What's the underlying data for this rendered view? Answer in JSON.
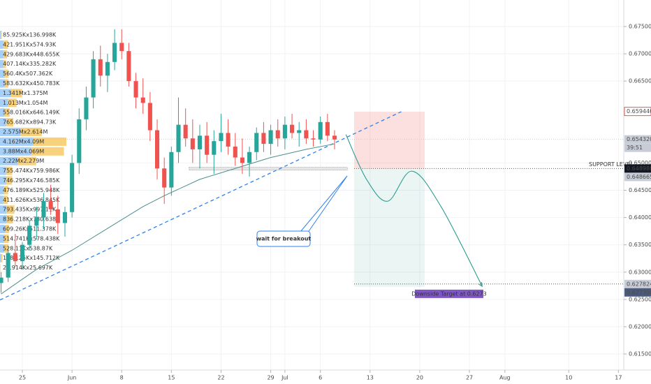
{
  "chart_data": {
    "type": "candlestick",
    "xlim": [
      -3.15,
      84.75
    ],
    "ylim": [
      0.61206,
      0.67986
    ],
    "grid": true,
    "xticks": [
      {
        "value": 0,
        "label": "25"
      },
      {
        "value": 7,
        "label": "Jun"
      },
      {
        "value": 14,
        "label": "8"
      },
      {
        "value": 21,
        "label": "15"
      },
      {
        "value": 28,
        "label": "22"
      },
      {
        "value": 35,
        "label": "29"
      },
      {
        "value": 37,
        "label": "Jul"
      },
      {
        "value": 42,
        "label": "6"
      },
      {
        "value": 49,
        "label": "13"
      },
      {
        "value": 56,
        "label": "20"
      },
      {
        "value": 63,
        "label": "27"
      },
      {
        "value": 68,
        "label": "Aug"
      },
      {
        "value": 77,
        "label": "10"
      },
      {
        "value": 84,
        "label": "17"
      }
    ],
    "yticks": [
      {
        "value": 0.675,
        "label": "0.675000"
      },
      {
        "value": 0.67,
        "label": "0.670000"
      },
      {
        "value": 0.665,
        "label": "0.665000"
      },
      {
        "value": 0.65,
        "label": "0.650000"
      },
      {
        "value": 0.645,
        "label": "0.645000"
      },
      {
        "value": 0.64,
        "label": "0.640000"
      },
      {
        "value": 0.635,
        "label": "0.635000"
      },
      {
        "value": 0.63,
        "label": "0.630000"
      },
      {
        "value": 0.625,
        "label": "0.625000"
      },
      {
        "value": 0.62,
        "label": "0.620000"
      },
      {
        "value": 0.615,
        "label": "0.615000"
      }
    ],
    "up_color": "#26a69a",
    "down_color": "#ef5350",
    "candles": {
      "x": [
        -3,
        -2,
        -1,
        0,
        1,
        2,
        3,
        4,
        5,
        6,
        7,
        8,
        9,
        10,
        11,
        12,
        13,
        14,
        15,
        16,
        17,
        18,
        19,
        20,
        21,
        22,
        23,
        24,
        25,
        26,
        27,
        28,
        29,
        30,
        31,
        32,
        33,
        34,
        35,
        36,
        37,
        38,
        39,
        40,
        41,
        42,
        43,
        44
      ],
      "open": [
        0.628,
        0.629,
        0.6335,
        0.632,
        0.635,
        0.6385,
        0.64,
        0.643,
        0.6415,
        0.639,
        0.641,
        0.65,
        0.658,
        0.662,
        0.669,
        0.666,
        0.6685,
        0.672,
        0.6705,
        0.665,
        0.662,
        0.661,
        0.656,
        0.649,
        0.6455,
        0.652,
        0.657,
        0.6545,
        0.6525,
        0.655,
        0.6515,
        0.654,
        0.6555,
        0.653,
        0.651,
        0.65,
        0.652,
        0.6555,
        0.6535,
        0.656,
        0.6545,
        0.657,
        0.6555,
        0.656,
        0.6545,
        0.6543,
        0.6575,
        0.655
      ],
      "high": [
        0.63,
        0.6345,
        0.637,
        0.6355,
        0.6395,
        0.642,
        0.6445,
        0.646,
        0.644,
        0.642,
        0.6515,
        0.66,
        0.664,
        0.6705,
        0.6715,
        0.67,
        0.6745,
        0.6745,
        0.672,
        0.6665,
        0.6655,
        0.663,
        0.658,
        0.651,
        0.653,
        0.662,
        0.66,
        0.658,
        0.657,
        0.6575,
        0.656,
        0.659,
        0.658,
        0.6555,
        0.6545,
        0.653,
        0.6565,
        0.6575,
        0.657,
        0.658,
        0.6585,
        0.659,
        0.6575,
        0.658,
        0.656,
        0.6585,
        0.659,
        0.656
      ],
      "low": [
        0.6262,
        0.6282,
        0.631,
        0.6305,
        0.634,
        0.636,
        0.638,
        0.6405,
        0.637,
        0.6365,
        0.64,
        0.648,
        0.656,
        0.66,
        0.664,
        0.663,
        0.667,
        0.669,
        0.664,
        0.66,
        0.659,
        0.654,
        0.647,
        0.6425,
        0.644,
        0.65,
        0.653,
        0.65,
        0.649,
        0.65,
        0.648,
        0.652,
        0.6515,
        0.6495,
        0.648,
        0.6475,
        0.6505,
        0.652,
        0.6515,
        0.653,
        0.6525,
        0.6545,
        0.653,
        0.6535,
        0.653,
        0.6535,
        0.654,
        0.6525
      ],
      "close": [
        0.629,
        0.6335,
        0.632,
        0.635,
        0.6385,
        0.64,
        0.643,
        0.6415,
        0.639,
        0.641,
        0.65,
        0.658,
        0.662,
        0.669,
        0.666,
        0.6685,
        0.672,
        0.6705,
        0.665,
        0.662,
        0.661,
        0.656,
        0.649,
        0.6455,
        0.652,
        0.657,
        0.6545,
        0.6525,
        0.655,
        0.6515,
        0.654,
        0.6555,
        0.653,
        0.651,
        0.65,
        0.652,
        0.6555,
        0.6535,
        0.656,
        0.6545,
        0.657,
        0.6555,
        0.656,
        0.6545,
        0.6543,
        0.6575,
        0.655,
        0.6543
      ]
    },
    "moving_average": {
      "color": "#4a8f8c",
      "x": [
        -3,
        2,
        7,
        12,
        17,
        20,
        25,
        30,
        35,
        40,
        44
      ],
      "values": [
        0.626,
        0.6305,
        0.634,
        0.638,
        0.642,
        0.644,
        0.647,
        0.649,
        0.651,
        0.6525,
        0.6535
      ]
    },
    "trendline": {
      "color": "#2f80ed",
      "x": [
        -3.15,
        53.4
      ],
      "y": [
        0.6249,
        0.6594
      ]
    },
    "risk_box": {
      "x": [
        46.75,
        56.7
      ],
      "top": 0.6594,
      "entry": 0.64898,
      "target": 0.6273
    },
    "support_band": {
      "x": [
        23.5,
        45.8
      ],
      "y": [
        0.6487,
        0.6492
      ]
    },
    "projection": {
      "color": "#2a9d8f",
      "x": [
        45.6,
        48.5,
        51.5,
        54.9,
        59,
        64.8
      ],
      "y": [
        0.6552,
        0.647,
        0.643,
        0.6485,
        0.642,
        0.6274
      ]
    },
    "support_label": "SUPPORT LEVEL",
    "breakout_note": "wait for breakout",
    "target_label": "Downside Target at 0.6273",
    "countdown": "39:51",
    "price_labels": [
      {
        "value": 0.65944,
        "label": "0.659440",
        "color": "#ef5350",
        "style": "outline"
      },
      {
        "value": 0.65432,
        "label": "0.654320",
        "color": "#c8ccd6",
        "style": "current"
      },
      {
        "value": 0.64898,
        "label": "0.648980",
        "color": "#131722",
        "style": "dotted"
      },
      {
        "value": 0.648665,
        "label": "0.648665",
        "color": "#c8ccd6",
        "style": "plain"
      },
      {
        "value": 0.627824,
        "label": "0.627824",
        "color": "#c8ccd6",
        "style": "dotted"
      },
      {
        "value": 0.6273,
        "label": "0.627300",
        "color": "#4b5b7d",
        "style": "plain"
      }
    ],
    "volume_profile": {
      "up_color": "#90c4f5",
      "down_color": "#f6c65b",
      "rows": [
        {
          "label": "85.925Kx136.998K",
          "up": 85925,
          "down": 136998
        },
        {
          "label": "421.951Kx574.93K",
          "up": 421951,
          "down": 574930
        },
        {
          "label": "429.683Kx448.655K",
          "up": 429683,
          "down": 448655
        },
        {
          "label": "407.14Kx335.282K",
          "up": 407140,
          "down": 335282
        },
        {
          "label": "560.4Kx507.362K",
          "up": 560400,
          "down": 507362
        },
        {
          "label": "583.632Kx450.783K",
          "up": 583632,
          "down": 450783
        },
        {
          "label": "1.341Mx1.375M",
          "up": 1341000,
          "down": 1375000
        },
        {
          "label": "1.013Mx1.054M",
          "up": 1013000,
          "down": 1054000
        },
        {
          "label": "558.016Kx646.149K",
          "up": 558016,
          "down": 646149
        },
        {
          "label": "765.682Kx894.73K",
          "up": 765682,
          "down": 894730
        },
        {
          "label": "2.575Mx2.614M",
          "up": 2575000,
          "down": 2614000
        },
        {
          "label": "4.162Mx4.09M",
          "up": 4162000,
          "down": 4090000
        },
        {
          "label": "3.88Mx4.069M",
          "up": 3880000,
          "down": 4069000
        },
        {
          "label": "2.22Mx2.279M",
          "up": 2220000,
          "down": 2279000
        },
        {
          "label": "755.474Kx759.986K",
          "up": 755474,
          "down": 759986
        },
        {
          "label": "746.295Kx746.585K",
          "up": 746295,
          "down": 746585
        },
        {
          "label": "476.189Kx525.948K",
          "up": 476189,
          "down": 525948
        },
        {
          "label": "411.626Kx536.845K",
          "up": 411626,
          "down": 536845
        },
        {
          "label": "793.435Kx997.11K",
          "up": 793435,
          "down": 997110
        },
        {
          "label": "836.218Kx780.638K",
          "up": 836218,
          "down": 780638
        },
        {
          "label": "609.26Kx511.378K",
          "up": 609260,
          "down": 511378
        },
        {
          "label": "514.741Kx578.438K",
          "up": 514741,
          "down": 578438
        },
        {
          "label": "528.11Kx538.87K",
          "up": 528110,
          "down": 538870
        },
        {
          "label": "158.125Kx145.712K",
          "up": 158125,
          "down": 145712
        },
        {
          "label": "24.914Kx25.697K",
          "up": 24914,
          "down": 25697
        }
      ]
    }
  }
}
